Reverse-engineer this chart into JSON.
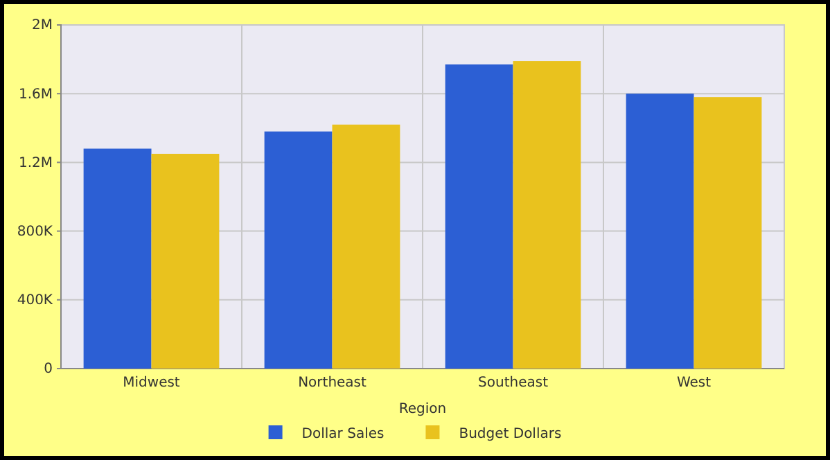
{
  "chart_data": {
    "type": "bar",
    "xlabel": "Region",
    "categories": [
      "Midwest",
      "Northeast",
      "Southeast",
      "West"
    ],
    "series": [
      {
        "name": "Dollar Sales",
        "color": "#2c5fd4",
        "values": [
          1280000,
          1380000,
          1770000,
          1600000
        ]
      },
      {
        "name": "Budget Dollars",
        "color": "#e9c21e",
        "values": [
          1250000,
          1420000,
          1790000,
          1580000
        ]
      }
    ],
    "ylim": [
      0,
      2000000
    ],
    "yticks": [
      0,
      {
        "value": 400000,
        "label": "400K"
      },
      {
        "value": 800000,
        "label": "800K"
      },
      {
        "value": 1200000,
        "label": "1.2M"
      },
      {
        "value": 1600000,
        "label": "1.6M"
      },
      {
        "value": 2000000,
        "label": "2M"
      }
    ],
    "grid": true,
    "legend": "bottom"
  }
}
